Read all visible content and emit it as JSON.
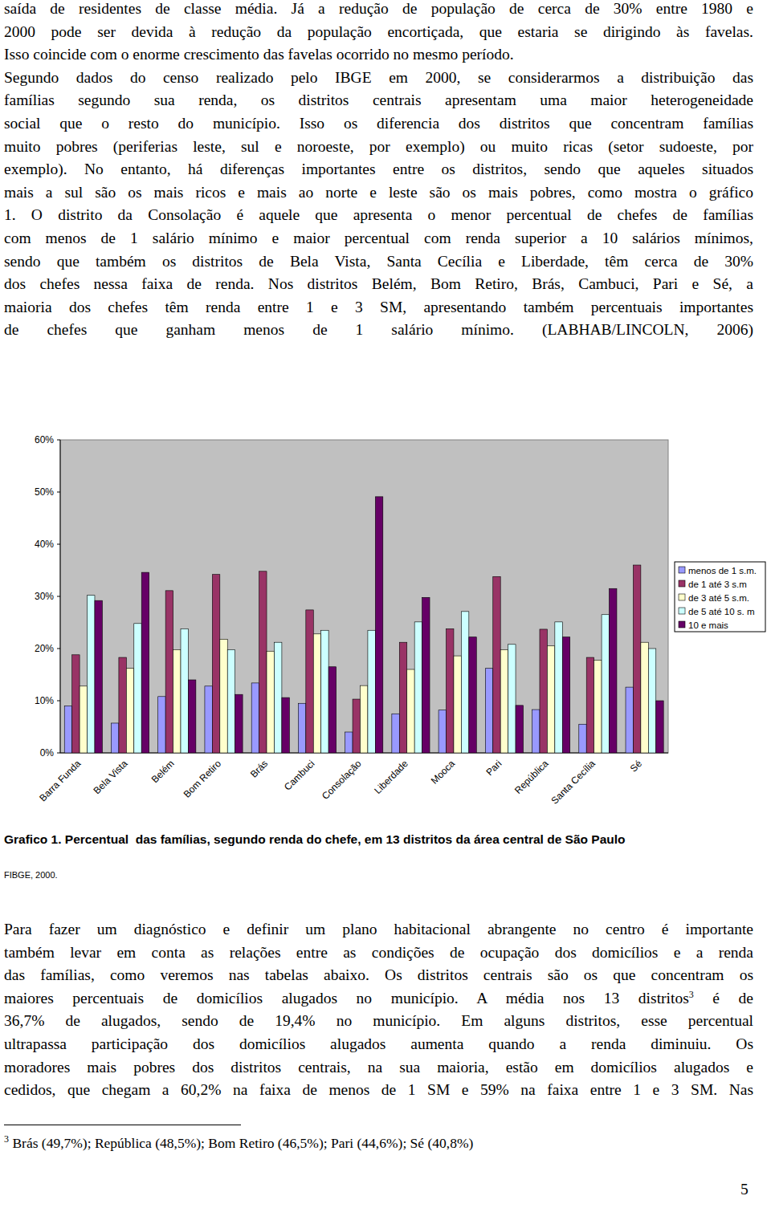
{
  "text_top": {
    "paragraphs": [
      [
        "saída de residentes de classe média. Já a redução de população de cerca de 30% entre 1980 e",
        "2000 pode ser devida à redução da população encortiçada, que estaria se dirigindo às favelas.",
        "Isso coincide com o enorme crescimento das favelas ocorrido no mesmo período."
      ],
      [
        "Segundo dados do censo realizado pelo IBGE em 2000, se considerarmos a distribuição das",
        "famílias segundo sua renda, os distritos centrais apresentam uma maior heterogeneidade",
        "social que o resto do município. Isso os diferencia dos distritos que concentram famílias",
        "muito pobres (periferias leste, sul e noroeste, por exemplo) ou muito ricas (setor sudoeste, por",
        "exemplo). No entanto, há diferenças importantes entre os distritos, sendo que aqueles situados",
        "mais a sul são os mais ricos e mais ao norte e leste são os mais pobres, como mostra o gráfico",
        "1. O distrito da Consolação é aquele que apresenta o menor percentual de chefes de famílias",
        "com menos de 1 salário mínimo e maior percentual com renda superior a 10 salários mínimos,",
        "sendo que também os distritos de Bela Vista, Santa Cecília e Liberdade, têm cerca de 30%",
        "dos chefes nessa faixa de renda. Nos distritos Belém, Bom Retiro, Brás, Cambuci, Pari e Sé, a",
        "maioria dos chefes têm renda entre 1 e 3 SM, apresentando também percentuais importantes",
        "de chefes que ganham menos de 1 salário mínimo. (LABHAB/LINCOLN, 2006)"
      ]
    ]
  },
  "chart_data": {
    "type": "bar",
    "categories": [
      "Barra Funda",
      "Bela Vista",
      "Belém",
      "Bom Retiro",
      "Brás",
      "Cambuci",
      "Consolação",
      "Liberdade",
      "Mooca",
      "Pari",
      "República",
      "Santa Cecília",
      "Sé"
    ],
    "series": [
      {
        "name": "menos de 1 s.m.",
        "color": "#9999ff",
        "values": [
          9,
          5.7,
          10.8,
          12.8,
          13.4,
          9.5,
          4,
          7.5,
          8.2,
          16.2,
          8.3,
          5.5,
          12.6
        ]
      },
      {
        "name": "de 1 até 3 s.m",
        "color": "#993366",
        "values": [
          18.8,
          18.3,
          31.1,
          34.2,
          34.8,
          27.4,
          10.3,
          21.2,
          23.8,
          33.8,
          23.7,
          18.3,
          36
        ]
      },
      {
        "name": "de 3 até 5 s.m.",
        "color": "#ffffcc",
        "values": [
          12.8,
          16.2,
          19.8,
          21.8,
          19.5,
          22.8,
          12.9,
          16,
          18.6,
          19.8,
          20.5,
          17.8,
          21.2
        ]
      },
      {
        "name": "de 5 até 10 s. m",
        "color": "#ccffff",
        "values": [
          30.2,
          24.8,
          23.8,
          19.8,
          21.2,
          23.5,
          23.5,
          25.1,
          27.1,
          20.8,
          25.1,
          26.5,
          20
        ]
      },
      {
        "name": "10 e mais",
        "color": "#660066",
        "values": [
          29.2,
          34.6,
          14,
          11.2,
          10.6,
          16.5,
          49.1,
          29.8,
          22.2,
          9.1,
          22.2,
          31.5,
          10
        ]
      }
    ],
    "ylim": [
      0,
      60
    ],
    "yticks": [
      {
        "value": 0,
        "label": "0%"
      },
      {
        "value": 10,
        "label": "10%"
      },
      {
        "value": 20,
        "label": "20%"
      },
      {
        "value": 30,
        "label": "30%"
      },
      {
        "value": 40,
        "label": "40%"
      },
      {
        "value": 50,
        "label": "50%"
      },
      {
        "value": 60,
        "label": "60%"
      }
    ],
    "grid": false,
    "legend": "right"
  },
  "caption": {
    "title": "Grafico 1. Percentual  das famílias, segundo renda do chefe, em 13 distritos da área central de São Paulo",
    "source": "FIBGE, 2000."
  },
  "text_bottom": {
    "paragraphs": [
      [
        "Para fazer um diagnóstico e definir um plano habitacional abrangente no centro é importante",
        "também levar em conta as relações entre as condições de ocupação dos domicílios e a renda",
        "das famílias, como veremos nas tabelas abaixo. Os distritos centrais são os que concentram os",
        {
          "before": "maiores percentuais de domicílios alugados no município. A média nos 13 distritos",
          "sup": "3",
          "after": " é de"
        },
        "36,7% de alugados, sendo de 19,4% no município. Em alguns distritos, esse percentual",
        "ultrapassa participação dos domicílios alugados aumenta quando a renda diminuiu. Os",
        "moradores mais pobres dos distritos centrais, na sua maioria, estão em domicílios alugados e",
        "cedidos, que chegam a 60,2% na faixa de menos de 1 SM e 59% na faixa entre 1 e 3 SM. Nas"
      ]
    ]
  },
  "footnote": {
    "marker": "3",
    "text": "Brás (49,7%); República (48,5%); Bom Retiro (46,5%); Pari (44,6%); Sé (40,8%)"
  },
  "page_number": "5"
}
